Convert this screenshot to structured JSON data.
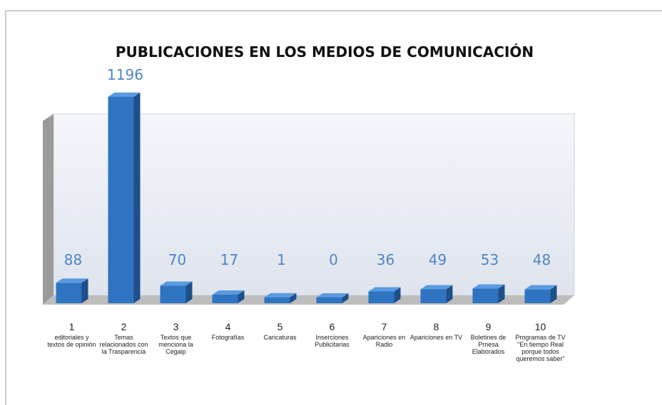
{
  "chart_data": {
    "type": "bar3d",
    "title": "PUBLICACIONES EN LOS MEDIOS DE COMUNICACIÓN",
    "categories": [
      "1",
      "2",
      "3",
      "4",
      "5",
      "6",
      "7",
      "8",
      "9",
      "10"
    ],
    "category_descriptions": [
      "editoriales y textos de opinión",
      "Temas relacionados con la Trasparencia",
      "Textos que menciona la Cegaip",
      "Fotografías",
      "Caricaturas",
      "Inserciones Publicitarias",
      "Apariciones en Radio",
      "Apariciones en TV",
      "Boletines de Prnesa Elaborados",
      "Programas de TV \"En tiempo Real porque todos queremos saber\""
    ],
    "values": [
      88,
      1196,
      70,
      17,
      1,
      0,
      36,
      49,
      53,
      48
    ],
    "color": "#2f74c0"
  }
}
